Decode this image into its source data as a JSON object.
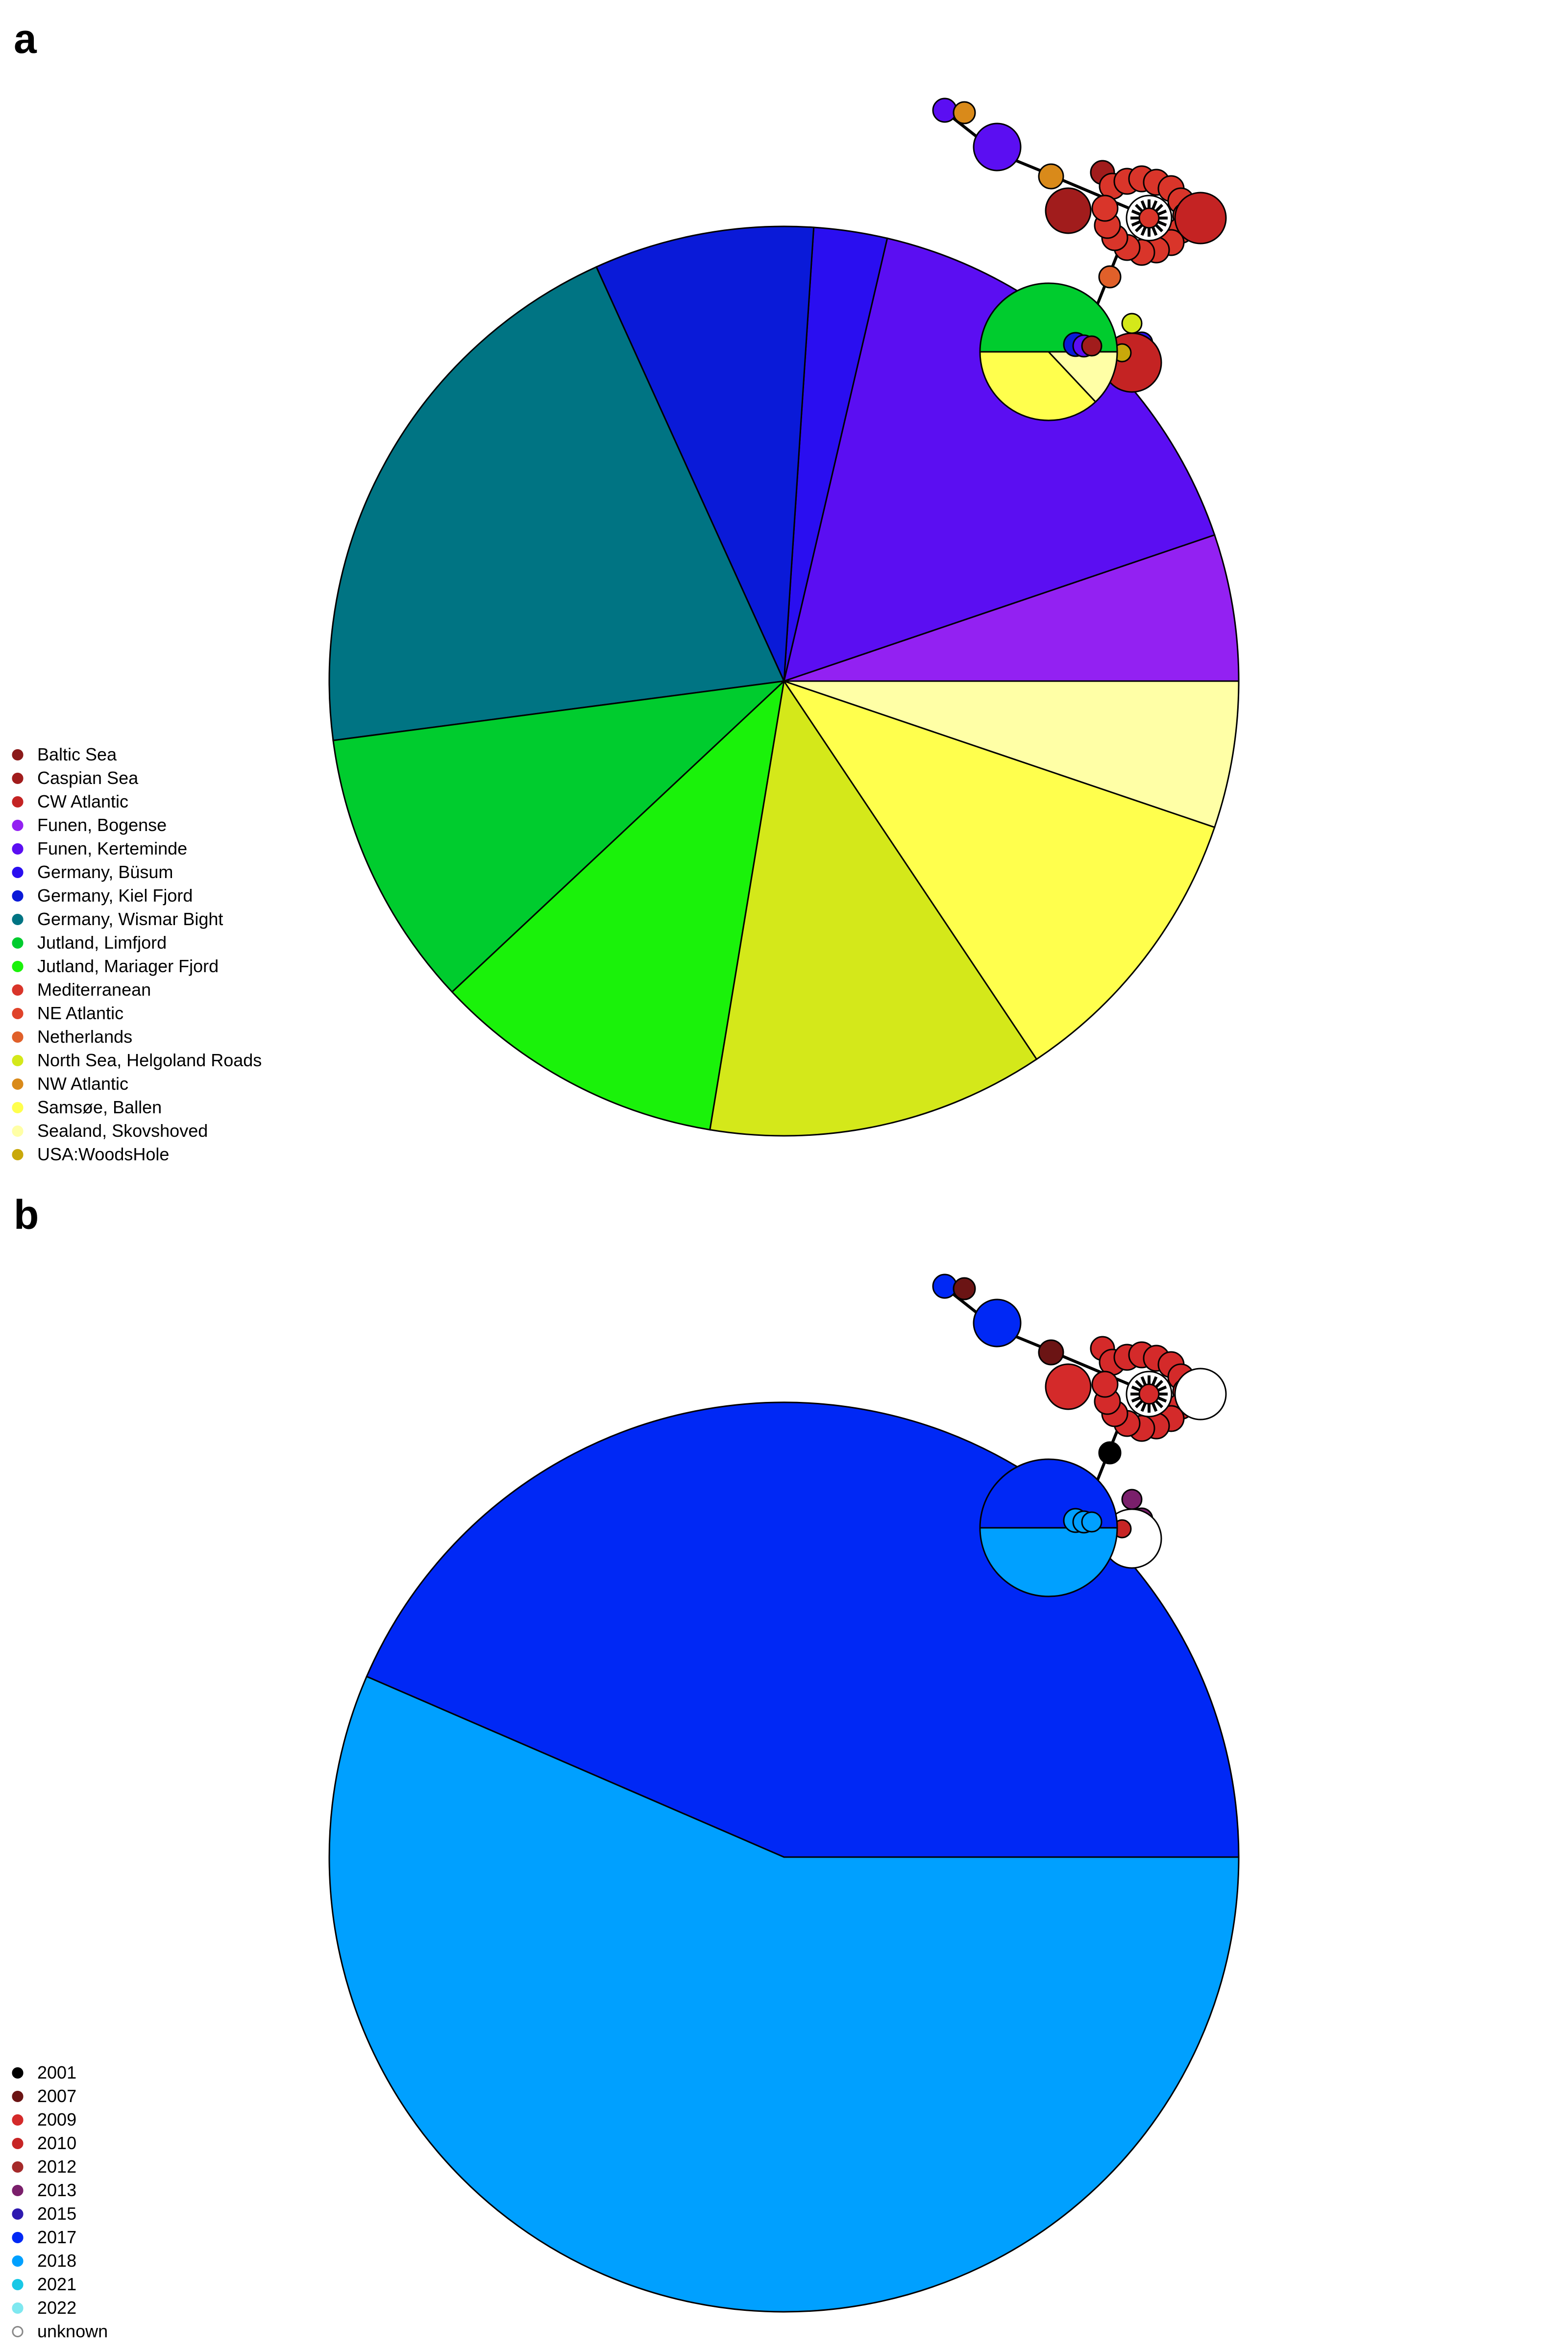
{
  "panels": [
    {
      "letter": "a",
      "legend": [
        {
          "label": "Baltic Sea",
          "color": "#8B1A1A"
        },
        {
          "label": "Caspian Sea",
          "color": "#A11C1C"
        },
        {
          "label": "CW Atlantic",
          "color": "#C42323"
        },
        {
          "label": "Funen, Bogense",
          "color": "#9321F2"
        },
        {
          "label": "Funen, Kerteminde",
          "color": "#5B0EF2"
        },
        {
          "label": "Germany, Büsum",
          "color": "#2A0EF0"
        },
        {
          "label": "Germany, Kiel Fjord",
          "color": "#0A1AD8"
        },
        {
          "label": "Germany, Wismar Bight",
          "color": "#007483"
        },
        {
          "label": "Jutland, Limfjord",
          "color": "#00CC2E"
        },
        {
          "label": "Jutland, Mariager Fjord",
          "color": "#1AF20A"
        },
        {
          "label": "Mediterranean",
          "color": "#D9352A"
        },
        {
          "label": "NE Atlantic",
          "color": "#E0432A"
        },
        {
          "label": "Netherlands",
          "color": "#E0602A"
        },
        {
          "label": "North Sea, Helgoland Roads",
          "color": "#D4E81A"
        },
        {
          "label": "NW Atlantic",
          "color": "#D98A1A"
        },
        {
          "label": "Samsøe, Ballen",
          "color": "#FFFF4D"
        },
        {
          "label": "Sealand, Skovshoved",
          "color": "#FFFFA6"
        },
        {
          "label": "USA:WoodsHole",
          "color": "#C9A80A"
        }
      ],
      "big_pie": [
        {
          "label": "Funen, Bogense",
          "value": 5.0,
          "color": "#9321F2"
        },
        {
          "label": "Funen, Kerteminde",
          "value": 15.5,
          "color": "#5B0EF2"
        },
        {
          "label": "Germany, Büsum",
          "value": 2.5,
          "color": "#2A0EF0"
        },
        {
          "label": "Germany, Kiel Fjord",
          "value": 7.5,
          "color": "#0A1AD8"
        },
        {
          "label": "Germany, Wismar Bight",
          "value": 19.5,
          "color": "#007483"
        },
        {
          "label": "Jutland, Limfjord",
          "value": 9.5,
          "color": "#00CC2E"
        },
        {
          "label": "Jutland, Mariager Fjord",
          "value": 10.0,
          "color": "#1AF20A"
        },
        {
          "label": "North Sea, Helgoland Roads",
          "value": 11.5,
          "color": "#D4E81A"
        },
        {
          "label": "Samsøe, Ballen",
          "value": 10.0,
          "color": "#FFFF4D"
        },
        {
          "label": "Sealand, Skovshoved",
          "value": 5.0,
          "color": "#FFFFA6"
        }
      ],
      "mid_pie": [
        {
          "label": "Jutland, Limfjord",
          "value": 50,
          "color": "#00CC2E"
        },
        {
          "label": "Samsøe, Ballen",
          "value": 37,
          "color": "#FFFF4D"
        },
        {
          "label": "Sealand, Skovshoved",
          "value": 13,
          "color": "#FFFFA6"
        }
      ]
    },
    {
      "letter": "b",
      "legend": [
        {
          "label": "2001",
          "color": "#000000"
        },
        {
          "label": "2007",
          "color": "#6B1414"
        },
        {
          "label": "2009",
          "color": "#D42A2A"
        },
        {
          "label": "2010",
          "color": "#C72525"
        },
        {
          "label": "2012",
          "color": "#A52A2A"
        },
        {
          "label": "2013",
          "color": "#7A1F6B"
        },
        {
          "label": "2015",
          "color": "#2E1AB0"
        },
        {
          "label": "2017",
          "color": "#0028F5"
        },
        {
          "label": "2018",
          "color": "#00A0FF"
        },
        {
          "label": "2021",
          "color": "#19C8E6"
        },
        {
          "label": "2022",
          "color": "#7FE8F0"
        },
        {
          "label": "unknown",
          "color": "#FFFFFF"
        }
      ],
      "big_pie": [
        {
          "label": "2017",
          "value": 43.5,
          "color": "#0028F5"
        },
        {
          "label": "2018",
          "value": 56.5,
          "color": "#00A0FF"
        }
      ],
      "mid_pie": [
        {
          "label": "2017",
          "value": 50,
          "color": "#0028F5"
        },
        {
          "label": "2018",
          "value": 50,
          "color": "#00A0FF"
        }
      ]
    }
  ]
}
